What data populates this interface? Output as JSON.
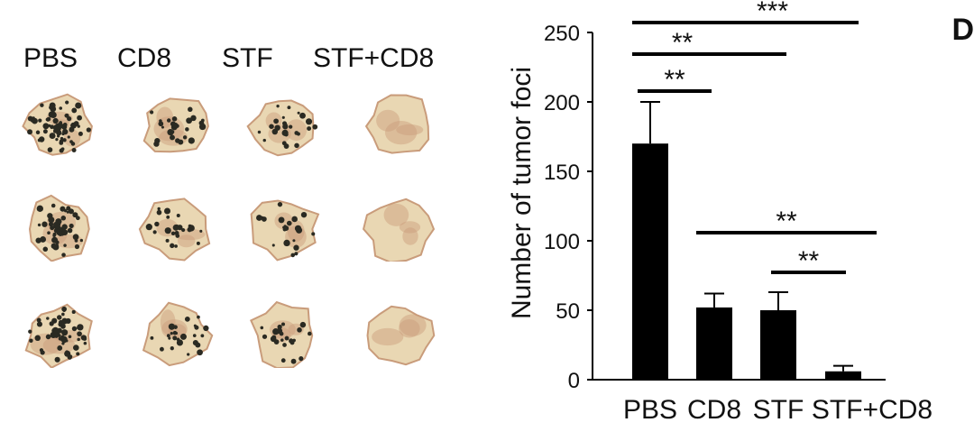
{
  "panel_letter": "D",
  "photo_columns": [
    "PBS",
    "CD8",
    "STF",
    "STF+CD8"
  ],
  "colors": {
    "bar": "#000000",
    "tissue_base": "#e9d7b3",
    "tissue_shade": "#c99c7b",
    "tumor_foci": "#2a2a22"
  },
  "chart_data": {
    "type": "bar",
    "categories": [
      "PBS",
      "CD8",
      "STF",
      "STF+CD8"
    ],
    "values": [
      170,
      52,
      50,
      6
    ],
    "errors": [
      30,
      10,
      13,
      4
    ],
    "title": "",
    "xlabel": "",
    "ylabel": "Number of tumor foci",
    "ylim": [
      0,
      250
    ],
    "yticks": [
      0,
      50,
      100,
      150,
      200,
      250
    ],
    "grid": false,
    "significance": [
      {
        "from": "PBS",
        "to": "STF+CD8",
        "label": "***"
      },
      {
        "from": "PBS",
        "to": "STF",
        "label": "**"
      },
      {
        "from": "PBS",
        "to": "CD8",
        "label": "**"
      },
      {
        "from": "CD8",
        "to": "STF+CD8",
        "label": "**"
      },
      {
        "from": "STF",
        "to": "STF+CD8",
        "label": "**"
      }
    ]
  }
}
